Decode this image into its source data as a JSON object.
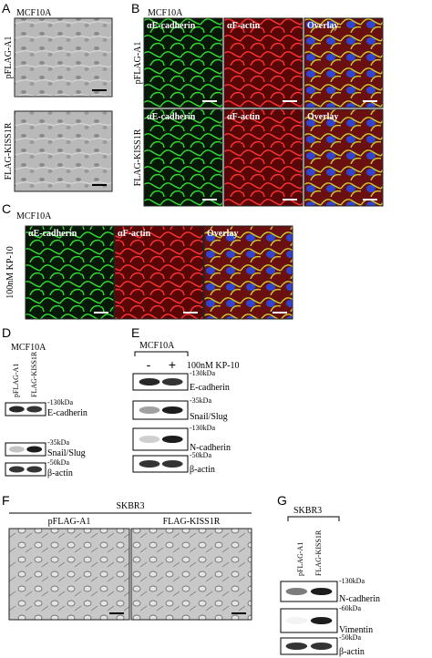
{
  "panel_a": {
    "label": "A",
    "cell_line": "MCF10A",
    "rows": [
      "pFLAG-A1",
      "FLAG-KISS1R"
    ]
  },
  "panel_b": {
    "label": "B",
    "cell_line": "MCF10A",
    "rows": [
      "pFLAG-A1",
      "FLAG-KISS1R"
    ],
    "columns": [
      "αE-cadherin",
      "αF-actin",
      "Overlay"
    ]
  },
  "panel_c": {
    "label": "C",
    "cell_line": "MCF10A",
    "rows": [
      "100nM KP-10"
    ],
    "columns": [
      "αE-cadherin",
      "αF-actin",
      "Overlay"
    ]
  },
  "panel_d": {
    "label": "D",
    "cell_line": "MCF10A",
    "lanes": [
      "pFLAG-A1",
      "FLAG-KISS1R"
    ],
    "blots": [
      {
        "marker": "-130kDa",
        "protein": "E-cadherin"
      },
      {
        "marker": "-35kDa",
        "protein": "Snail/Slug"
      },
      {
        "marker": "-50kDa",
        "protein": "β-actin"
      }
    ]
  },
  "panel_e": {
    "label": "E",
    "cell_line": "MCF10A",
    "lanes": [
      "-",
      "+"
    ],
    "treatment": "100nM KP-10",
    "blots": [
      {
        "marker": "-130kDa",
        "protein": "E-cadherin"
      },
      {
        "marker": "-35kDa",
        "protein": "Snail/Slug"
      },
      {
        "marker": "-130kDa",
        "protein": "N-cadherin"
      },
      {
        "marker": "-50kDa",
        "protein": "β-actin"
      }
    ]
  },
  "panel_f": {
    "label": "F",
    "cell_line": "SKBR3",
    "columns": [
      "pFLAG-A1",
      "FLAG-KISS1R"
    ]
  },
  "panel_g": {
    "label": "G",
    "cell_line": "SKBR3",
    "lanes": [
      "pFLAG-A1",
      "FLAG-KISS1R"
    ],
    "blots": [
      {
        "marker": "-130kDa",
        "protein": "N-cadherin"
      },
      {
        "marker": "-60kDa",
        "protein": "Vimentin"
      },
      {
        "marker": "-50kDa",
        "protein": "β-actin"
      }
    ]
  }
}
